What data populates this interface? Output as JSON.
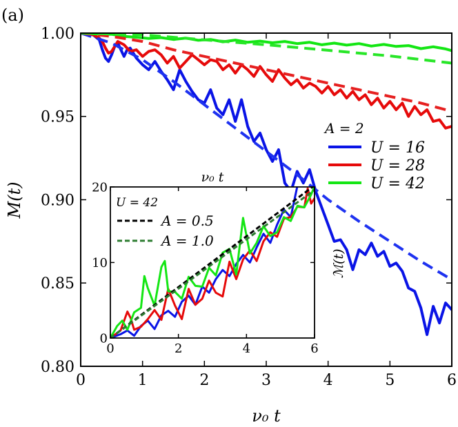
{
  "panel_label": "(a)",
  "chart_data": [
    {
      "type": "line",
      "role": "main",
      "xlabel": "ν₀ t",
      "ylabel": "M(t)",
      "xlim": [
        0,
        6
      ],
      "ylim": [
        0.8,
        1.0
      ],
      "xticks": [
        0,
        1,
        2,
        3,
        4,
        5,
        6
      ],
      "yticks": [
        0.8,
        0.85,
        0.9,
        0.95,
        1.0
      ],
      "xtick_labels": [
        "0",
        "1",
        "2",
        "3",
        "4",
        "5",
        "6"
      ],
      "ytick_labels": [
        "0.80",
        "0.85",
        "0.90",
        "0.95",
        "1.00"
      ],
      "grid": false,
      "legend_title": "A = 2",
      "legend_position": "right",
      "series": [
        {
          "name": "U = 16",
          "color": "#0a14e6",
          "style": "solid",
          "x": [
            0,
            0.2,
            0.3,
            0.35,
            0.4,
            0.45,
            0.5,
            0.55,
            0.6,
            0.65,
            0.7,
            0.75,
            0.8,
            0.9,
            1.0,
            1.1,
            1.2,
            1.3,
            1.4,
            1.5,
            1.6,
            1.7,
            1.8,
            1.9,
            2.0,
            2.1,
            2.2,
            2.3,
            2.4,
            2.5,
            2.6,
            2.7,
            2.8,
            2.9,
            3.0,
            3.1,
            3.2,
            3.3,
            3.4,
            3.5,
            3.6,
            3.7,
            3.8,
            3.9,
            4.0,
            4.1,
            4.2,
            4.3,
            4.4,
            4.5,
            4.6,
            4.7,
            4.8,
            4.9,
            5.0,
            5.1,
            5.2,
            5.3,
            5.4,
            5.5,
            5.6,
            5.7,
            5.8,
            5.9,
            6.0
          ],
          "y": [
            1.0,
            0.999,
            0.996,
            0.99,
            0.985,
            0.983,
            0.987,
            0.992,
            0.994,
            0.99,
            0.986,
            0.99,
            0.991,
            0.985,
            0.981,
            0.978,
            0.983,
            0.977,
            0.972,
            0.966,
            0.978,
            0.971,
            0.965,
            0.96,
            0.958,
            0.966,
            0.955,
            0.951,
            0.96,
            0.947,
            0.96,
            0.944,
            0.935,
            0.94,
            0.93,
            0.923,
            0.93,
            0.91,
            0.905,
            0.917,
            0.91,
            0.918,
            0.905,
            0.895,
            0.885,
            0.875,
            0.876,
            0.87,
            0.858,
            0.87,
            0.867,
            0.874,
            0.866,
            0.869,
            0.86,
            0.862,
            0.857,
            0.847,
            0.845,
            0.835,
            0.819,
            0.836,
            0.826,
            0.838,
            0.834
          ]
        },
        {
          "name": "U = 28",
          "color": "#e60a0a",
          "style": "solid",
          "x": [
            0,
            0.2,
            0.3,
            0.35,
            0.4,
            0.45,
            0.5,
            0.55,
            0.6,
            0.7,
            0.8,
            0.9,
            1.0,
            1.1,
            1.2,
            1.3,
            1.4,
            1.5,
            1.6,
            1.7,
            1.8,
            1.9,
            2.0,
            2.1,
            2.2,
            2.3,
            2.4,
            2.5,
            2.6,
            2.7,
            2.8,
            2.9,
            3.0,
            3.1,
            3.2,
            3.3,
            3.4,
            3.5,
            3.6,
            3.7,
            3.8,
            3.9,
            4.0,
            4.1,
            4.2,
            4.3,
            4.4,
            4.5,
            4.6,
            4.7,
            4.8,
            4.9,
            5.0,
            5.1,
            5.2,
            5.3,
            5.4,
            5.5,
            5.6,
            5.7,
            5.8,
            5.9,
            6.0
          ],
          "y": [
            1.0,
            0.999,
            0.997,
            0.995,
            0.991,
            0.988,
            0.989,
            0.992,
            0.995,
            0.993,
            0.989,
            0.99,
            0.986,
            0.989,
            0.99,
            0.987,
            0.982,
            0.986,
            0.979,
            0.983,
            0.987,
            0.984,
            0.981,
            0.984,
            0.983,
            0.978,
            0.981,
            0.976,
            0.981,
            0.978,
            0.974,
            0.98,
            0.975,
            0.971,
            0.978,
            0.973,
            0.969,
            0.972,
            0.967,
            0.97,
            0.968,
            0.964,
            0.968,
            0.963,
            0.966,
            0.961,
            0.965,
            0.96,
            0.963,
            0.957,
            0.961,
            0.955,
            0.959,
            0.954,
            0.958,
            0.95,
            0.956,
            0.951,
            0.954,
            0.947,
            0.948,
            0.943,
            0.944
          ]
        },
        {
          "name": "U = 42",
          "color": "#14e614",
          "style": "solid",
          "x": [
            0,
            0.3,
            0.5,
            0.7,
            0.9,
            1.1,
            1.3,
            1.5,
            1.7,
            1.9,
            2.1,
            2.3,
            2.5,
            2.7,
            2.9,
            3.1,
            3.3,
            3.5,
            3.7,
            3.9,
            4.1,
            4.3,
            4.5,
            4.7,
            4.9,
            5.1,
            5.3,
            5.5,
            5.7,
            5.9,
            6.0
          ],
          "y": [
            1.0,
            0.9995,
            0.9993,
            0.998,
            0.9975,
            0.9968,
            0.9973,
            0.9962,
            0.997,
            0.9957,
            0.9962,
            0.9948,
            0.9958,
            0.9945,
            0.9952,
            0.9942,
            0.995,
            0.9937,
            0.9945,
            0.993,
            0.994,
            0.9928,
            0.9937,
            0.9922,
            0.9932,
            0.992,
            0.9925,
            0.9907,
            0.9918,
            0.9905,
            0.9895
          ]
        },
        {
          "name": "",
          "color": "#1e32f0",
          "style": "dashed",
          "x": [
            0,
            0.5,
            1.0,
            1.5,
            2.0,
            2.5,
            3.0,
            3.5,
            4.0,
            4.5,
            5.0,
            5.5,
            6.0
          ],
          "y": [
            1.0,
            0.994,
            0.984,
            0.971,
            0.957,
            0.943,
            0.929,
            0.915,
            0.9,
            0.887,
            0.875,
            0.863,
            0.852
          ]
        },
        {
          "name": "",
          "color": "#e62020",
          "style": "dashed",
          "x": [
            0,
            0.5,
            1.0,
            1.5,
            2.0,
            2.5,
            3.0,
            3.5,
            4.0,
            4.5,
            5.0,
            5.5,
            6.0
          ],
          "y": [
            1.0,
            0.998,
            0.995,
            0.99,
            0.986,
            0.982,
            0.978,
            0.974,
            0.97,
            0.966,
            0.962,
            0.958,
            0.953
          ]
        },
        {
          "name": "",
          "color": "#28e628",
          "style": "dashed",
          "x": [
            0,
            1.0,
            2.0,
            3.0,
            4.0,
            5.0,
            6.0
          ],
          "y": [
            1.0,
            0.999,
            0.996,
            0.993,
            0.9897,
            0.9863,
            0.982
          ]
        }
      ]
    },
    {
      "type": "line",
      "role": "inset",
      "xlabel": "ν₀ t",
      "ylabel": "ℳ(t)",
      "xlim": [
        0,
        6
      ],
      "ylim": [
        0,
        20
      ],
      "xticks": [
        0,
        2,
        4,
        6
      ],
      "yticks": [
        0,
        10,
        20
      ],
      "xtick_labels": [
        "0",
        "2",
        "4",
        "6"
      ],
      "ytick_labels": [
        "0",
        "10",
        "20"
      ],
      "legend_title": "U = 42",
      "legend_position": "top-left",
      "series": [
        {
          "name": "",
          "color": "#0a14e6",
          "style": "solid",
          "x": [
            0,
            0.3,
            0.5,
            0.7,
            0.9,
            1.1,
            1.3,
            1.5,
            1.7,
            1.9,
            2.1,
            2.3,
            2.5,
            2.7,
            2.9,
            3.1,
            3.3,
            3.5,
            3.7,
            3.9,
            4.1,
            4.3,
            4.5,
            4.7,
            4.9,
            5.1,
            5.3,
            5.5
          ],
          "y": [
            0,
            0.5,
            1.0,
            0.3,
            1.6,
            2.3,
            1.2,
            3.0,
            3.6,
            2.8,
            4.8,
            5.6,
            4.4,
            6.8,
            6.0,
            7.8,
            9.0,
            8.2,
            9.8,
            11.0,
            10.0,
            12.0,
            13.8,
            12.6,
            15.0,
            17.0,
            16.0,
            20.2
          ]
        },
        {
          "name": "",
          "color": "#e60a0a",
          "style": "solid",
          "x": [
            0,
            0.3,
            0.5,
            0.6,
            0.7,
            0.9,
            1.1,
            1.3,
            1.5,
            1.7,
            1.9,
            2.1,
            2.3,
            2.5,
            2.7,
            2.9,
            3.1,
            3.3,
            3.5,
            3.7,
            3.9,
            4.1,
            4.3,
            4.5,
            4.7,
            4.9,
            5.1,
            5.3,
            5.5,
            5.7,
            5.8,
            5.9,
            6.0
          ],
          "y": [
            0,
            1.0,
            3.5,
            2.6,
            1.1,
            1.5,
            2.5,
            3.7,
            2.4,
            6.5,
            4.3,
            2.5,
            6.5,
            4.4,
            5.2,
            7.6,
            6.0,
            5.5,
            10.1,
            7.8,
            10.4,
            11.6,
            10.2,
            12.8,
            14.0,
            13.4,
            15.8,
            16.0,
            17.4,
            17.3,
            19.8,
            17.8,
            18.5
          ]
        },
        {
          "name": "",
          "color": "#14e614",
          "style": "solid",
          "x": [
            0,
            0.2,
            0.35,
            0.5,
            0.7,
            0.9,
            1.0,
            1.1,
            1.3,
            1.5,
            1.6,
            1.7,
            1.9,
            2.1,
            2.3,
            2.5,
            2.7,
            2.9,
            3.1,
            3.3,
            3.5,
            3.7,
            3.9,
            4.1,
            4.3,
            4.5,
            4.7,
            4.9,
            5.1,
            5.3,
            5.5,
            5.7,
            5.9,
            6.0
          ],
          "y": [
            0,
            1.6,
            2.3,
            1.1,
            3.4,
            4.0,
            8.2,
            6.6,
            4.3,
            9.4,
            10.2,
            6.2,
            6.1,
            5.2,
            8.1,
            6.9,
            6.8,
            9.3,
            8.3,
            11.3,
            11.8,
            8.4,
            15.9,
            11.2,
            12.6,
            14.8,
            13.5,
            14.0,
            16.0,
            15.5,
            17.5,
            17.3,
            19.0,
            20.1
          ]
        },
        {
          "name": "A = 0.5",
          "color": "#000000",
          "style": "dashed",
          "x": [
            0,
            6
          ],
          "y": [
            0,
            20.2
          ]
        },
        {
          "name": "A = 1.0",
          "color": "#2e7d32",
          "style": "dashed",
          "x": [
            0,
            6
          ],
          "y": [
            0,
            19.6
          ]
        }
      ]
    }
  ]
}
